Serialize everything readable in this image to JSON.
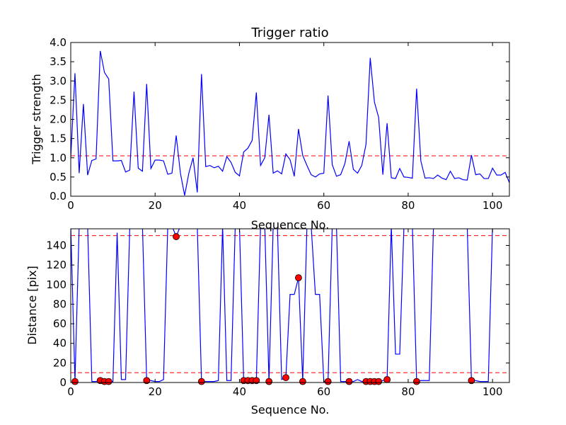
{
  "chart_data": [
    {
      "type": "line",
      "title": "Trigger ratio",
      "xlabel": "Sequence No.",
      "ylabel": "Trigger strength",
      "xlim": [
        0,
        104
      ],
      "ylim": [
        0,
        4.0
      ],
      "xticks": [
        "0",
        "20",
        "40",
        "60",
        "80",
        "100"
      ],
      "yticks": [
        "0.0",
        "0.5",
        "1.0",
        "1.5",
        "2.0",
        "2.5",
        "3.0",
        "3.5",
        "4.0"
      ],
      "grid": false,
      "line_color": "#0000ff",
      "threshold": {
        "y": 1.05,
        "color": "#ff0000",
        "style": "dashed"
      },
      "series": [
        {
          "x": [
            0,
            1,
            2,
            3,
            4,
            5,
            6,
            7,
            8,
            9,
            10,
            11,
            12,
            13,
            14,
            15,
            16,
            17,
            18,
            19,
            20,
            21,
            22,
            23,
            24,
            25,
            26,
            27,
            28,
            29,
            30,
            31,
            32,
            33,
            34,
            35,
            36,
            37,
            38,
            39,
            40,
            41,
            42,
            43,
            44,
            45,
            46,
            47,
            48,
            49,
            50,
            51,
            52,
            53,
            54,
            55,
            56,
            57,
            58,
            59,
            60,
            61,
            62,
            63,
            64,
            65,
            66,
            67,
            68,
            69,
            70,
            71,
            72,
            73,
            74,
            75,
            76,
            77,
            78,
            79,
            80,
            81,
            82,
            83,
            84,
            85,
            86,
            87,
            88,
            89,
            90,
            91,
            92,
            93,
            94,
            95,
            96,
            97,
            98,
            99,
            100,
            101,
            102,
            103,
            104
          ],
          "y": [
            1.0,
            3.2,
            0.6,
            2.4,
            0.55,
            0.93,
            0.97,
            3.78,
            3.22,
            3.05,
            0.92,
            0.92,
            0.93,
            0.63,
            0.68,
            2.72,
            0.73,
            0.65,
            2.92,
            0.72,
            0.94,
            0.94,
            0.92,
            0.57,
            0.6,
            1.58,
            0.6,
            0.02,
            0.6,
            1.0,
            0.1,
            3.18,
            0.77,
            0.8,
            0.74,
            0.78,
            0.65,
            1.03,
            0.88,
            0.62,
            0.53,
            1.15,
            1.25,
            1.45,
            2.7,
            0.8,
            1.0,
            2.12,
            0.6,
            0.66,
            0.58,
            1.1,
            0.95,
            0.52,
            1.75,
            1.06,
            0.8,
            0.56,
            0.5,
            0.58,
            0.6,
            2.62,
            0.82,
            0.52,
            0.56,
            0.85,
            1.43,
            0.7,
            0.6,
            0.8,
            1.35,
            3.6,
            2.45,
            2.05,
            0.56,
            1.9,
            0.48,
            0.46,
            0.72,
            0.5,
            0.49,
            0.47,
            2.8,
            0.92,
            0.47,
            0.48,
            0.46,
            0.55,
            0.47,
            0.43,
            0.65,
            0.46,
            0.48,
            0.43,
            0.42,
            1.07,
            0.56,
            0.58,
            0.46,
            0.46,
            0.73,
            0.55,
            0.55,
            0.62,
            0.35
          ]
        }
      ]
    },
    {
      "type": "line",
      "title": "",
      "xlabel": "Sequence No.",
      "ylabel": "Distance [pix]",
      "xlim": [
        0,
        104
      ],
      "ylim": [
        0,
        157
      ],
      "xticks": [
        "0",
        "20",
        "40",
        "60",
        "80",
        "100"
      ],
      "yticks": [
        "0",
        "20",
        "40",
        "60",
        "80",
        "100",
        "120",
        "140"
      ],
      "grid": false,
      "line_color": "#0000ff",
      "marker_color": "#ff0000",
      "thresholds": [
        {
          "y": 150,
          "color": "#ff0000",
          "style": "dashed"
        },
        {
          "y": 10,
          "color": "#ff0000",
          "style": "dashed"
        }
      ],
      "series": [
        {
          "x": [
            0,
            1,
            2,
            3,
            4,
            5,
            6,
            7,
            8,
            9,
            10,
            11,
            12,
            13,
            14,
            15,
            16,
            17,
            18,
            19,
            20,
            21,
            22,
            23,
            24,
            25,
            26,
            27,
            28,
            29,
            30,
            31,
            32,
            33,
            34,
            35,
            36,
            37,
            38,
            39,
            40,
            41,
            42,
            43,
            44,
            45,
            46,
            47,
            48,
            49,
            50,
            51,
            52,
            53,
            54,
            55,
            56,
            57,
            58,
            59,
            60,
            61,
            62,
            63,
            64,
            65,
            66,
            67,
            68,
            69,
            70,
            71,
            72,
            73,
            74,
            75,
            76,
            77,
            78,
            79,
            80,
            81,
            82,
            83,
            84,
            85,
            86,
            87,
            88,
            89,
            90,
            91,
            92,
            93,
            94,
            95,
            96,
            97,
            98,
            99,
            100,
            101,
            102,
            103,
            104
          ],
          "y": [
            160,
            1,
            160,
            160,
            160,
            1,
            1,
            2,
            1,
            1,
            1,
            153,
            3,
            3,
            160,
            160,
            160,
            160,
            2,
            2,
            1,
            1,
            3,
            160,
            160,
            149,
            160,
            160,
            160,
            160,
            160,
            1,
            1,
            1,
            1,
            2,
            160,
            2,
            2,
            160,
            160,
            2,
            2,
            2,
            2,
            160,
            160,
            1,
            160,
            160,
            3,
            5,
            90,
            90,
            107,
            1,
            160,
            160,
            90,
            90,
            1,
            1,
            160,
            160,
            1,
            1,
            1,
            1,
            3,
            1,
            1,
            1,
            1,
            1,
            2,
            3,
            160,
            29,
            29,
            160,
            160,
            160,
            1,
            2,
            2,
            2,
            160,
            160,
            160,
            160,
            160,
            160,
            160,
            160,
            160,
            2,
            2,
            1,
            1,
            1,
            160,
            160,
            160,
            160,
            160
          ]
        }
      ],
      "markers": {
        "x": [
          1,
          7,
          8,
          9,
          18,
          25,
          31,
          41,
          42,
          43,
          44,
          47,
          51,
          54,
          55,
          61,
          66,
          70,
          71,
          72,
          73,
          75,
          82,
          95
        ],
        "y": [
          1,
          2,
          1,
          1,
          2,
          149,
          1,
          2,
          2,
          2,
          2,
          1,
          5,
          107,
          1,
          1,
          1,
          1,
          1,
          1,
          1,
          3,
          1,
          2
        ]
      }
    }
  ]
}
